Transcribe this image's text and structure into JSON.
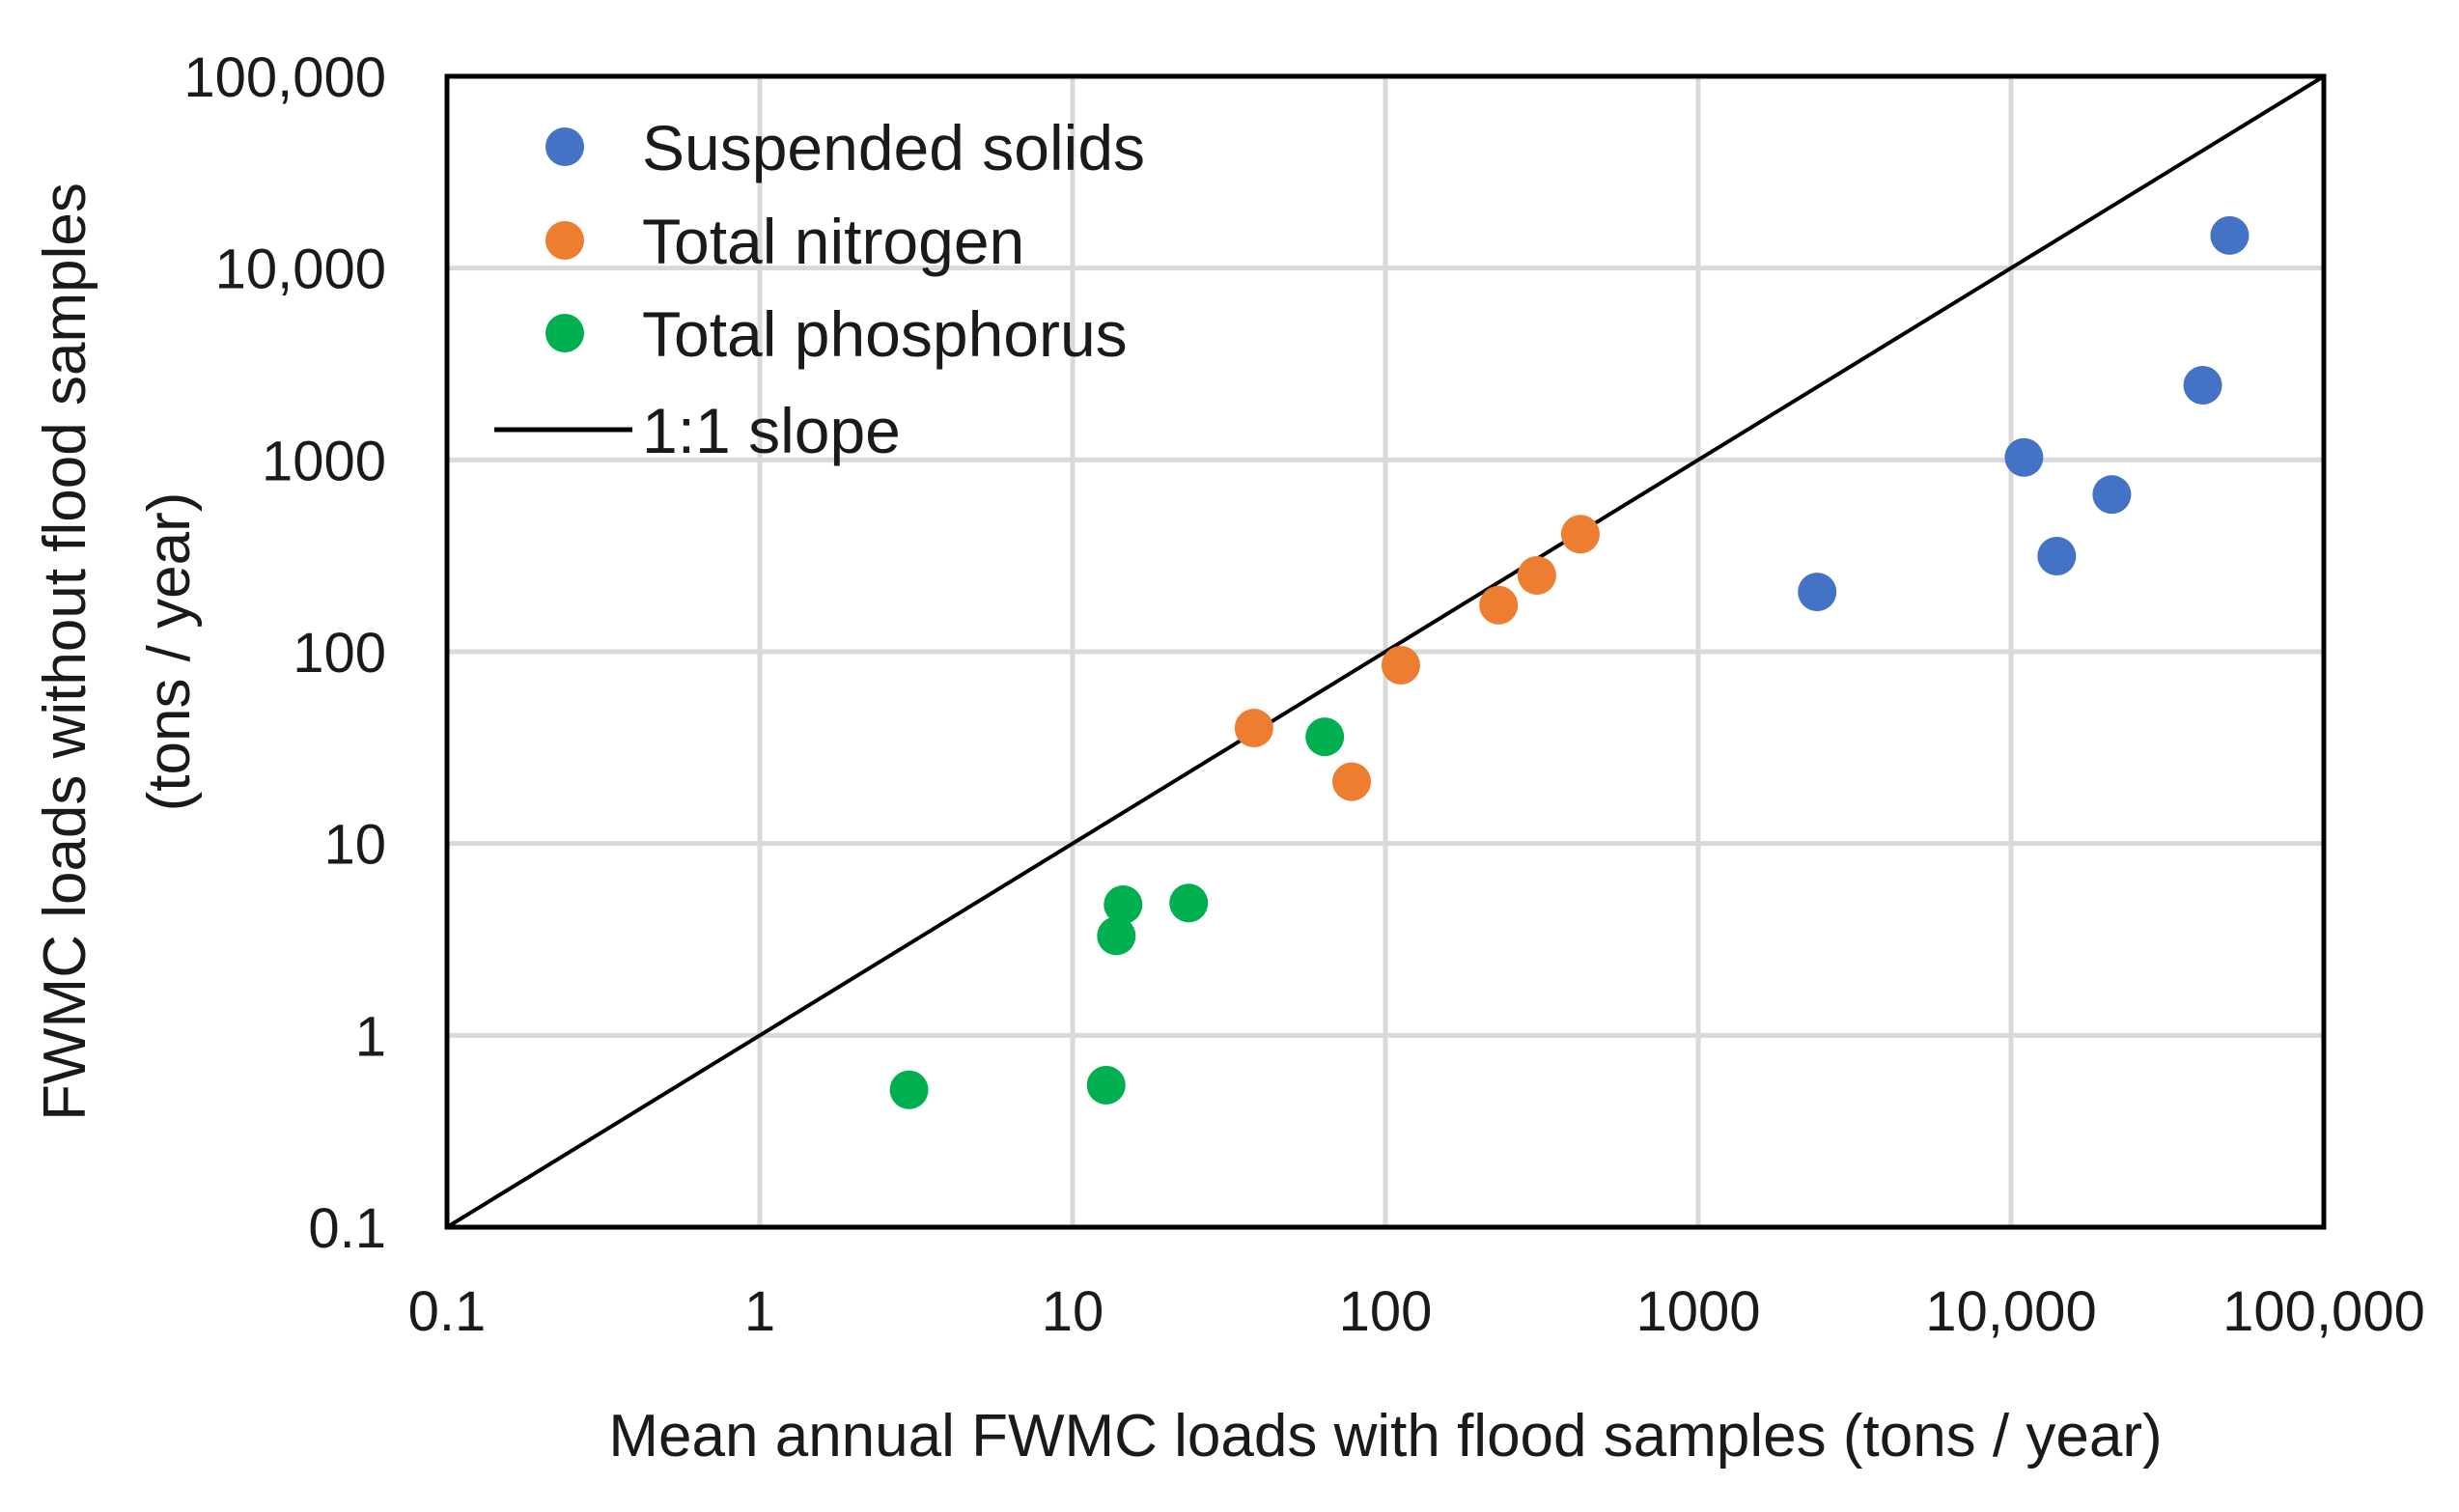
{
  "chart_data": {
    "type": "scatter",
    "xscale": "log",
    "yscale": "log",
    "xlim": [
      0.1,
      100000
    ],
    "ylim": [
      0.1,
      100000
    ],
    "grid": true,
    "legend_position": "top-left",
    "xlabel": "Mean annual FWMC loads with flood samples (tons / year)",
    "ylabel_lines": [
      "FWMC loads without flood samples",
      "(tons / year)"
    ],
    "x_ticks": [
      {
        "value": 0.1,
        "label": "0.1"
      },
      {
        "value": 1,
        "label": "1"
      },
      {
        "value": 10,
        "label": "10"
      },
      {
        "value": 100,
        "label": "100"
      },
      {
        "value": 1000,
        "label": "1000"
      },
      {
        "value": 10000,
        "label": "10,000"
      },
      {
        "value": 100000,
        "label": "100,000"
      }
    ],
    "y_ticks": [
      {
        "value": 0.1,
        "label": "0.1"
      },
      {
        "value": 1,
        "label": "1"
      },
      {
        "value": 10,
        "label": "10"
      },
      {
        "value": 100,
        "label": "100"
      },
      {
        "value": 1000,
        "label": "1000"
      },
      {
        "value": 10000,
        "label": "10,000"
      },
      {
        "value": 100000,
        "label": "100,000"
      }
    ],
    "series": [
      {
        "name": "Suspended solids",
        "color": "#4472C4",
        "points": [
          {
            "x": 2400,
            "y": 205
          },
          {
            "x": 11000,
            "y": 1030
          },
          {
            "x": 14000,
            "y": 315
          },
          {
            "x": 21000,
            "y": 660
          },
          {
            "x": 41000,
            "y": 2450
          },
          {
            "x": 50000,
            "y": 14800
          }
        ]
      },
      {
        "name": "Total nitrogen",
        "color": "#ED7D31",
        "points": [
          {
            "x": 38,
            "y": 40
          },
          {
            "x": 78,
            "y": 21
          },
          {
            "x": 112,
            "y": 85
          },
          {
            "x": 230,
            "y": 175
          },
          {
            "x": 305,
            "y": 250
          },
          {
            "x": 420,
            "y": 410
          }
        ]
      },
      {
        "name": "Total phosphorus",
        "color": "#00B050",
        "points": [
          {
            "x": 3,
            "y": 0.52
          },
          {
            "x": 12.8,
            "y": 0.55
          },
          {
            "x": 13.8,
            "y": 3.3
          },
          {
            "x": 14.5,
            "y": 4.8
          },
          {
            "x": 23.5,
            "y": 4.9
          },
          {
            "x": 64,
            "y": 36
          }
        ]
      }
    ],
    "reference_line": {
      "name": "1:1 slope",
      "color": "#000000",
      "from": [
        0.1,
        0.1
      ],
      "to": [
        100000,
        100000
      ]
    }
  }
}
